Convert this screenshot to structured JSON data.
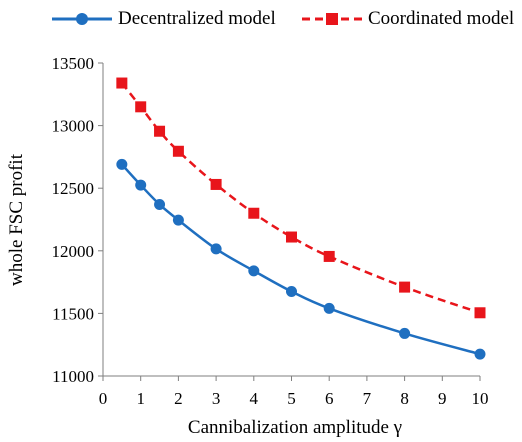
{
  "chart_data": {
    "type": "line",
    "xlabel": "Cannibalization amplitude γ",
    "ylabel": "whole FSC profit",
    "xlim": [
      0,
      10
    ],
    "ylim": [
      11000,
      13500
    ],
    "xticks": [
      0,
      1,
      2,
      3,
      4,
      5,
      6,
      7,
      8,
      9,
      10
    ],
    "yticks": [
      11000,
      11500,
      12000,
      12500,
      13000,
      13500
    ],
    "grid": false,
    "legend_position": "top",
    "series": [
      {
        "name": "Decentralized model",
        "color": "#1f6fc0",
        "line_style": "solid",
        "marker": "circle",
        "x": [
          0.5,
          1,
          1.5,
          2,
          3,
          4,
          5,
          6,
          8,
          10
        ],
        "y": [
          12690,
          12525,
          12370,
          12245,
          12015,
          11840,
          11675,
          11540,
          11340,
          11175
        ]
      },
      {
        "name": "Coordinated model",
        "color": "#e8151b",
        "line_style": "dashed",
        "marker": "square",
        "x": [
          0.5,
          1,
          1.5,
          2,
          3,
          4,
          5,
          6,
          8,
          10
        ],
        "y": [
          13340,
          13150,
          12955,
          12795,
          12530,
          12300,
          12110,
          11955,
          11710,
          11505
        ]
      }
    ]
  }
}
